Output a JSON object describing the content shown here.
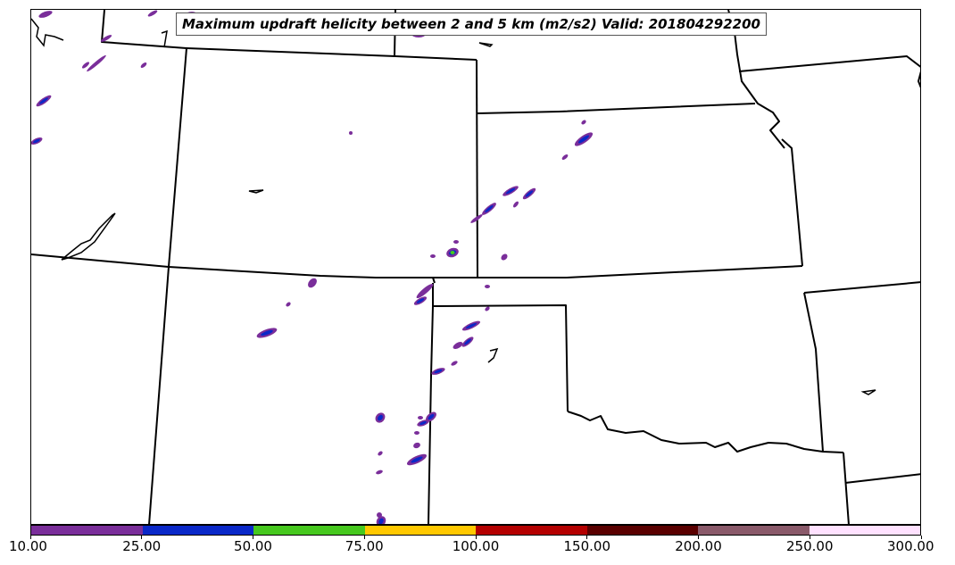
{
  "title": "Maximum updraft helicity between 2 and 5 km (m2/s2) Valid: 201804292200",
  "colorbar": {
    "colors": [
      "#7a2e9a",
      "#0a28c8",
      "#46c81e",
      "#ffc800",
      "#b40000",
      "#5a0000",
      "#8a5a6a",
      "#ffe1ff"
    ],
    "labels": [
      "10.00",
      "25.00",
      "50.00",
      "75.00",
      "100.00",
      "150.00",
      "200.00",
      "250.00",
      "300.00"
    ]
  },
  "map": {
    "region": "central-us-plains",
    "basemap_color": "#000000"
  }
}
